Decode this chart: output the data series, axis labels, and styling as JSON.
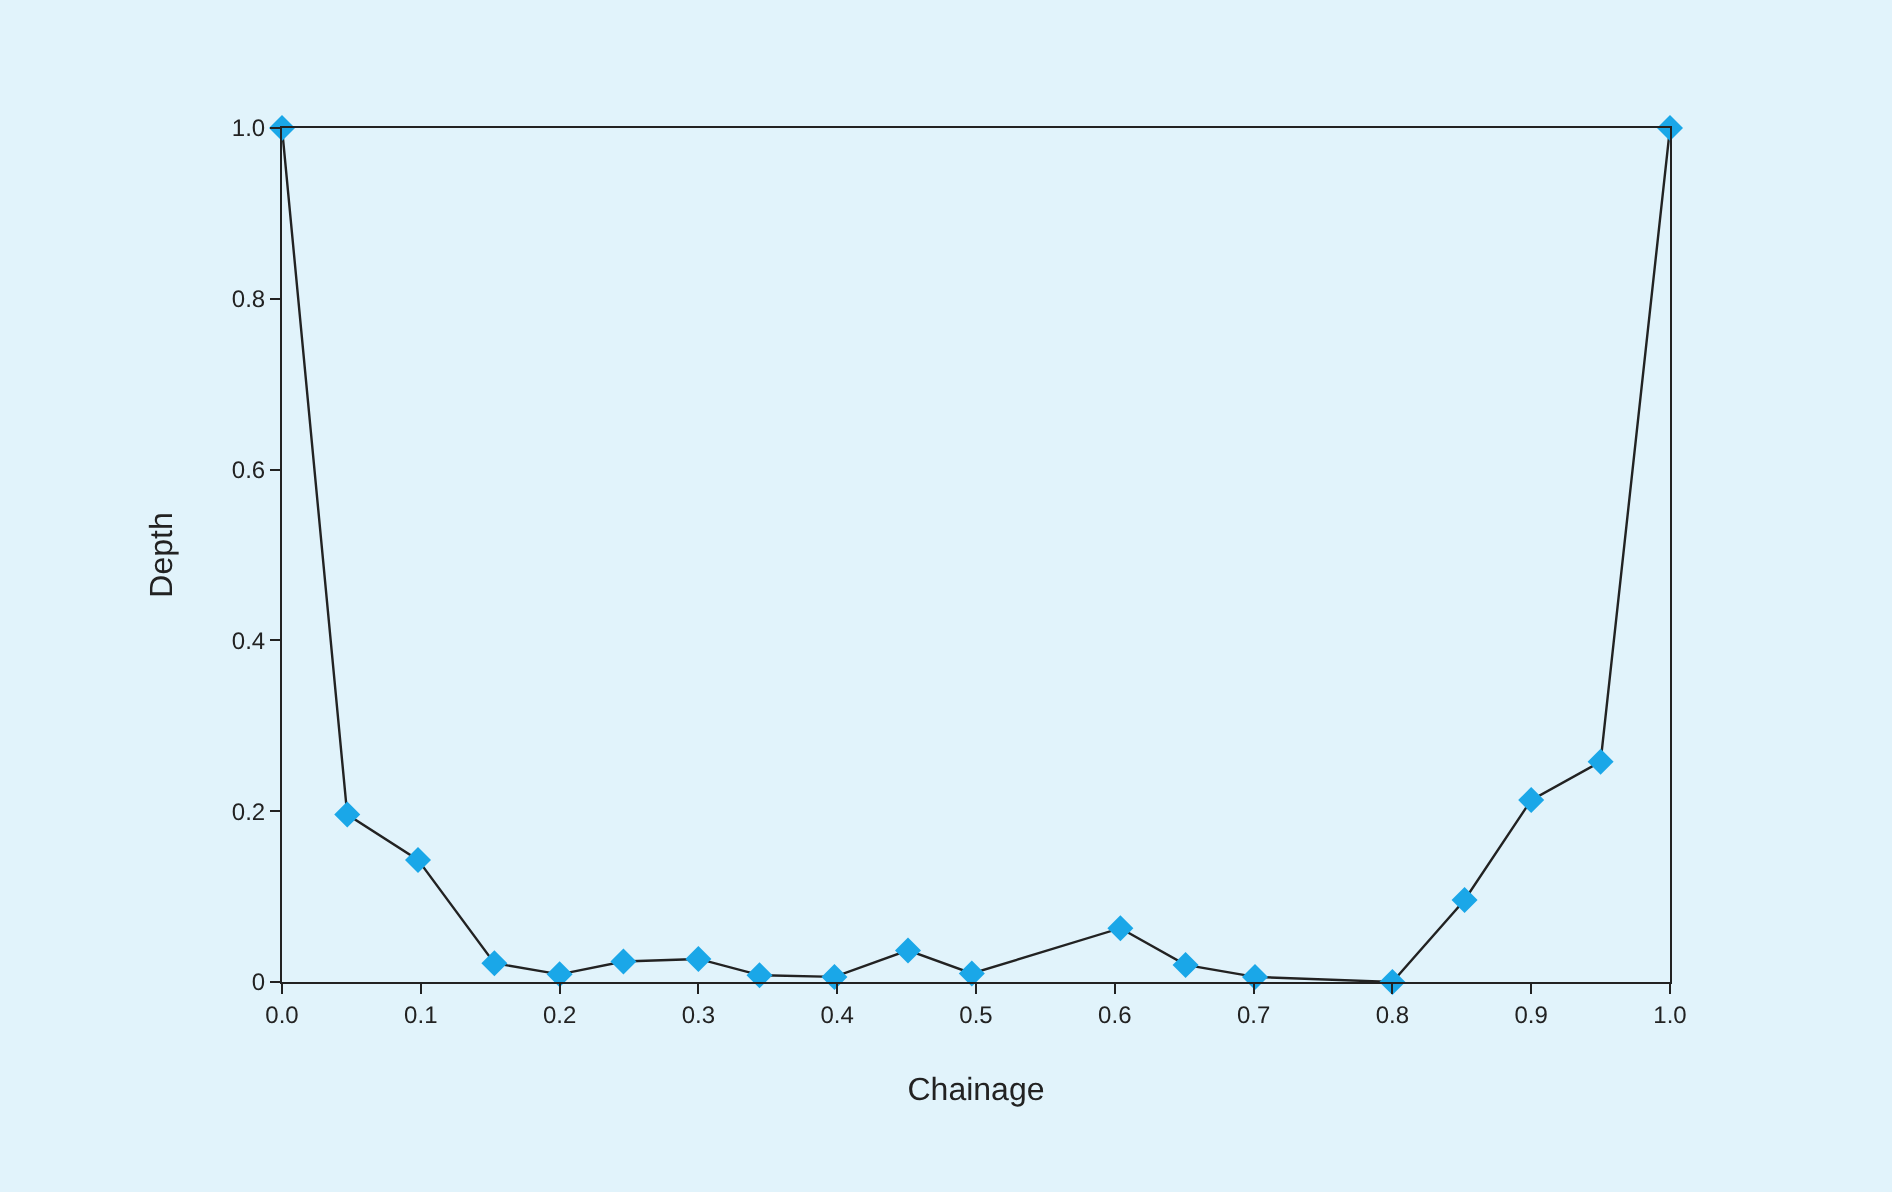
{
  "chart_data": {
    "type": "line",
    "xlabel": "Chainage",
    "ylabel": "Depth",
    "x": [
      0.0,
      0.047,
      0.098,
      0.153,
      0.2,
      0.246,
      0.3,
      0.344,
      0.398,
      0.451,
      0.497,
      0.604,
      0.651,
      0.701,
      0.8,
      0.852,
      0.9,
      0.95,
      1.0
    ],
    "series": [
      {
        "color": "#1aa7e8",
        "values": [
          1.0,
          0.196,
          0.143,
          0.022,
          0.009,
          0.024,
          0.027,
          0.008,
          0.006,
          0.037,
          0.01,
          0.063,
          0.02,
          0.006,
          0.0,
          0.096,
          0.213,
          0.258,
          1.0
        ]
      }
    ],
    "xlim": [
      0.0,
      1.0
    ],
    "xticks": [
      {
        "value": 0.0,
        "label": "0.0"
      },
      0.1,
      0.2,
      0.3,
      0.4,
      0.5,
      0.6,
      0.7,
      0.8,
      0.9,
      {
        "value": 1.0,
        "label": "1.0"
      }
    ],
    "ylim": [
      0.0,
      1.0
    ],
    "yticks": [
      0,
      0.2,
      0.4,
      0.6,
      0.8,
      {
        "value": 1.0,
        "label": "1.0"
      }
    ],
    "grid": false,
    "marker": "diamond",
    "line_style": "solid"
  }
}
